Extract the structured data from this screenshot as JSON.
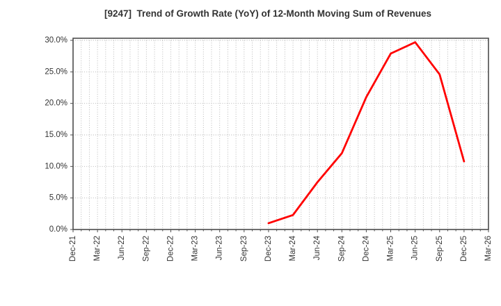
{
  "title": "[9247]  Trend of Growth Rate (YoY) of 12-Month Moving Sum of Revenues",
  "colors": {
    "background": "#ffffff",
    "line": "#ff0000",
    "title": "#333333",
    "tick_label": "#333333",
    "grid": "#b0b0b0",
    "frame": "#4d4d4d"
  },
  "chart_data": {
    "type": "line",
    "title": "[9247]  Trend of Growth Rate (YoY) of 12-Month Moving Sum of Revenues",
    "xlabel": "",
    "ylabel": "",
    "legend": "none",
    "grid": "dotted, monthly vertical lines and 5% horizontal lines",
    "x_month_span": 51,
    "ylim": [
      0,
      30.33
    ],
    "x_ticks": [
      {
        "label": "Dec-21",
        "month": 0
      },
      {
        "label": "Mar-22",
        "month": 3
      },
      {
        "label": "Jun-22",
        "month": 6
      },
      {
        "label": "Sep-22",
        "month": 9
      },
      {
        "label": "Dec-22",
        "month": 12
      },
      {
        "label": "Mar-23",
        "month": 15
      },
      {
        "label": "Jun-23",
        "month": 18
      },
      {
        "label": "Sep-23",
        "month": 21
      },
      {
        "label": "Dec-23",
        "month": 24
      },
      {
        "label": "Mar-24",
        "month": 27
      },
      {
        "label": "Jun-24",
        "month": 30
      },
      {
        "label": "Sep-24",
        "month": 33
      },
      {
        "label": "Dec-24",
        "month": 36
      },
      {
        "label": "Mar-25",
        "month": 39
      },
      {
        "label": "Jun-25",
        "month": 42
      },
      {
        "label": "Sep-25",
        "month": 45
      },
      {
        "label": "Dec-25",
        "month": 48
      },
      {
        "label": "Mar-26",
        "month": 51
      }
    ],
    "y_ticks": [
      {
        "label": "0.0%",
        "value": 0
      },
      {
        "label": "5.0%",
        "value": 5
      },
      {
        "label": "10.0%",
        "value": 10
      },
      {
        "label": "15.0%",
        "value": 15
      },
      {
        "label": "20.0%",
        "value": 20
      },
      {
        "label": "25.0%",
        "value": 25
      },
      {
        "label": "30.0%",
        "value": 30
      }
    ],
    "series": [
      {
        "name": "Growth Rate (YoY) of 12-Month Moving Sum of Revenues",
        "color": "#ff0000",
        "points": [
          {
            "label": "Dec-23",
            "month": 24,
            "value": 1.0
          },
          {
            "label": "Mar-24",
            "month": 27,
            "value": 2.3
          },
          {
            "label": "Jun-24",
            "month": 30,
            "value": 7.5
          },
          {
            "label": "Sep-24",
            "month": 33,
            "value": 12.1
          },
          {
            "label": "Dec-24",
            "month": 36,
            "value": 21.0
          },
          {
            "label": "Mar-25",
            "month": 39,
            "value": 27.9
          },
          {
            "label": "Jun-25",
            "month": 42,
            "value": 29.7
          },
          {
            "label": "Sep-25",
            "month": 45,
            "value": 24.6
          },
          {
            "label": "Dec-25",
            "month": 48,
            "value": 10.8
          }
        ]
      }
    ]
  }
}
